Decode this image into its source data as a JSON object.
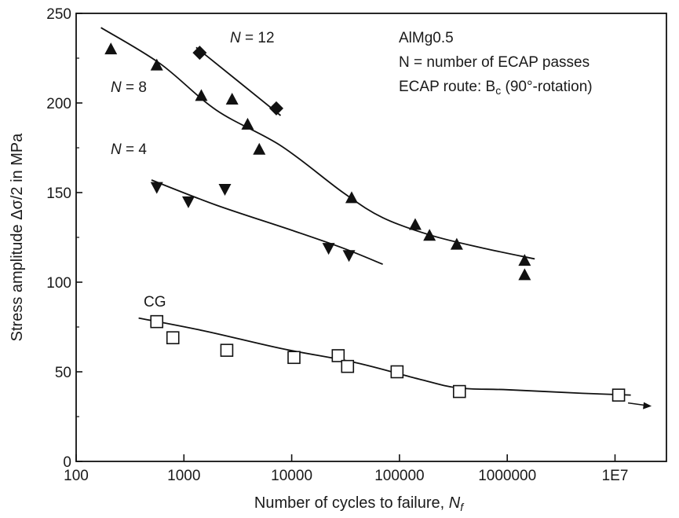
{
  "chart_data": {
    "type": "scatter",
    "xlabel": "Number of cycles to failure, ",
    "xlabel_sub": "f",
    "xlabel_var": "N",
    "ylabel": "Stress amplitude Δσ/2 in MPa",
    "x_scale": "log",
    "xlim": [
      100,
      30000000
    ],
    "ylim": [
      0,
      250
    ],
    "x_ticks": [
      100,
      1000,
      10000,
      100000,
      1000000,
      10000000
    ],
    "x_tick_labels": [
      "100",
      "1000",
      "10000",
      "100000",
      "1000000",
      "1E7"
    ],
    "y_ticks": [
      0,
      50,
      100,
      150,
      200,
      250
    ],
    "y_tick_labels": [
      "0",
      "50",
      "100",
      "150",
      "200",
      "250"
    ],
    "grid": false,
    "info_box": [
      "AlMg0.5",
      "N = number of ECAP passes",
      "ECAP route: B",
      "c",
      " (90°-rotation)"
    ],
    "series": [
      {
        "label": "N = 12",
        "marker": "diamond",
        "points": [
          [
            1400,
            228
          ],
          [
            7200,
            197
          ]
        ],
        "fit": [
          [
            1300,
            231
          ],
          [
            7900,
            193
          ]
        ]
      },
      {
        "label": "N = 8",
        "marker": "triangle-up",
        "points": [
          [
            210,
            230
          ],
          [
            560,
            221
          ],
          [
            1450,
            204
          ],
          [
            2800,
            202
          ],
          [
            3900,
            188
          ],
          [
            5000,
            174
          ],
          [
            36000,
            147
          ],
          [
            140000,
            132
          ],
          [
            190000,
            126
          ],
          [
            340000,
            121
          ],
          [
            1450000,
            112
          ],
          [
            1450000,
            104
          ]
        ],
        "fit": [
          [
            170,
            242
          ],
          [
            600,
            222
          ],
          [
            2000,
            196
          ],
          [
            8000,
            176
          ],
          [
            30000,
            150
          ],
          [
            70000,
            136
          ],
          [
            200000,
            126
          ],
          [
            600000,
            119
          ],
          [
            1800000,
            113
          ]
        ]
      },
      {
        "label": "N = 4",
        "marker": "triangle-down",
        "points": [
          [
            560,
            153
          ],
          [
            1100,
            145
          ],
          [
            2400,
            152
          ],
          [
            22000,
            119
          ],
          [
            34000,
            115
          ]
        ],
        "fit": [
          [
            500,
            157
          ],
          [
            2000,
            143
          ],
          [
            10000,
            129
          ],
          [
            30000,
            119
          ],
          [
            70000,
            110
          ]
        ]
      },
      {
        "label": "CG",
        "marker": "square-open",
        "points": [
          [
            560,
            78
          ],
          [
            790,
            69
          ],
          [
            2500,
            62
          ],
          [
            10500,
            58
          ],
          [
            27000,
            59
          ],
          [
            33000,
            53
          ],
          [
            95000,
            50
          ],
          [
            360000,
            39
          ],
          [
            10800000,
            37
          ]
        ],
        "fit": [
          [
            380,
            80
          ],
          [
            1500,
            73
          ],
          [
            8000,
            63
          ],
          [
            40000,
            55
          ],
          [
            150000,
            46
          ],
          [
            350000,
            41
          ],
          [
            1000000,
            40
          ],
          [
            5000000,
            38
          ],
          [
            14000000,
            37
          ]
        ]
      }
    ]
  }
}
